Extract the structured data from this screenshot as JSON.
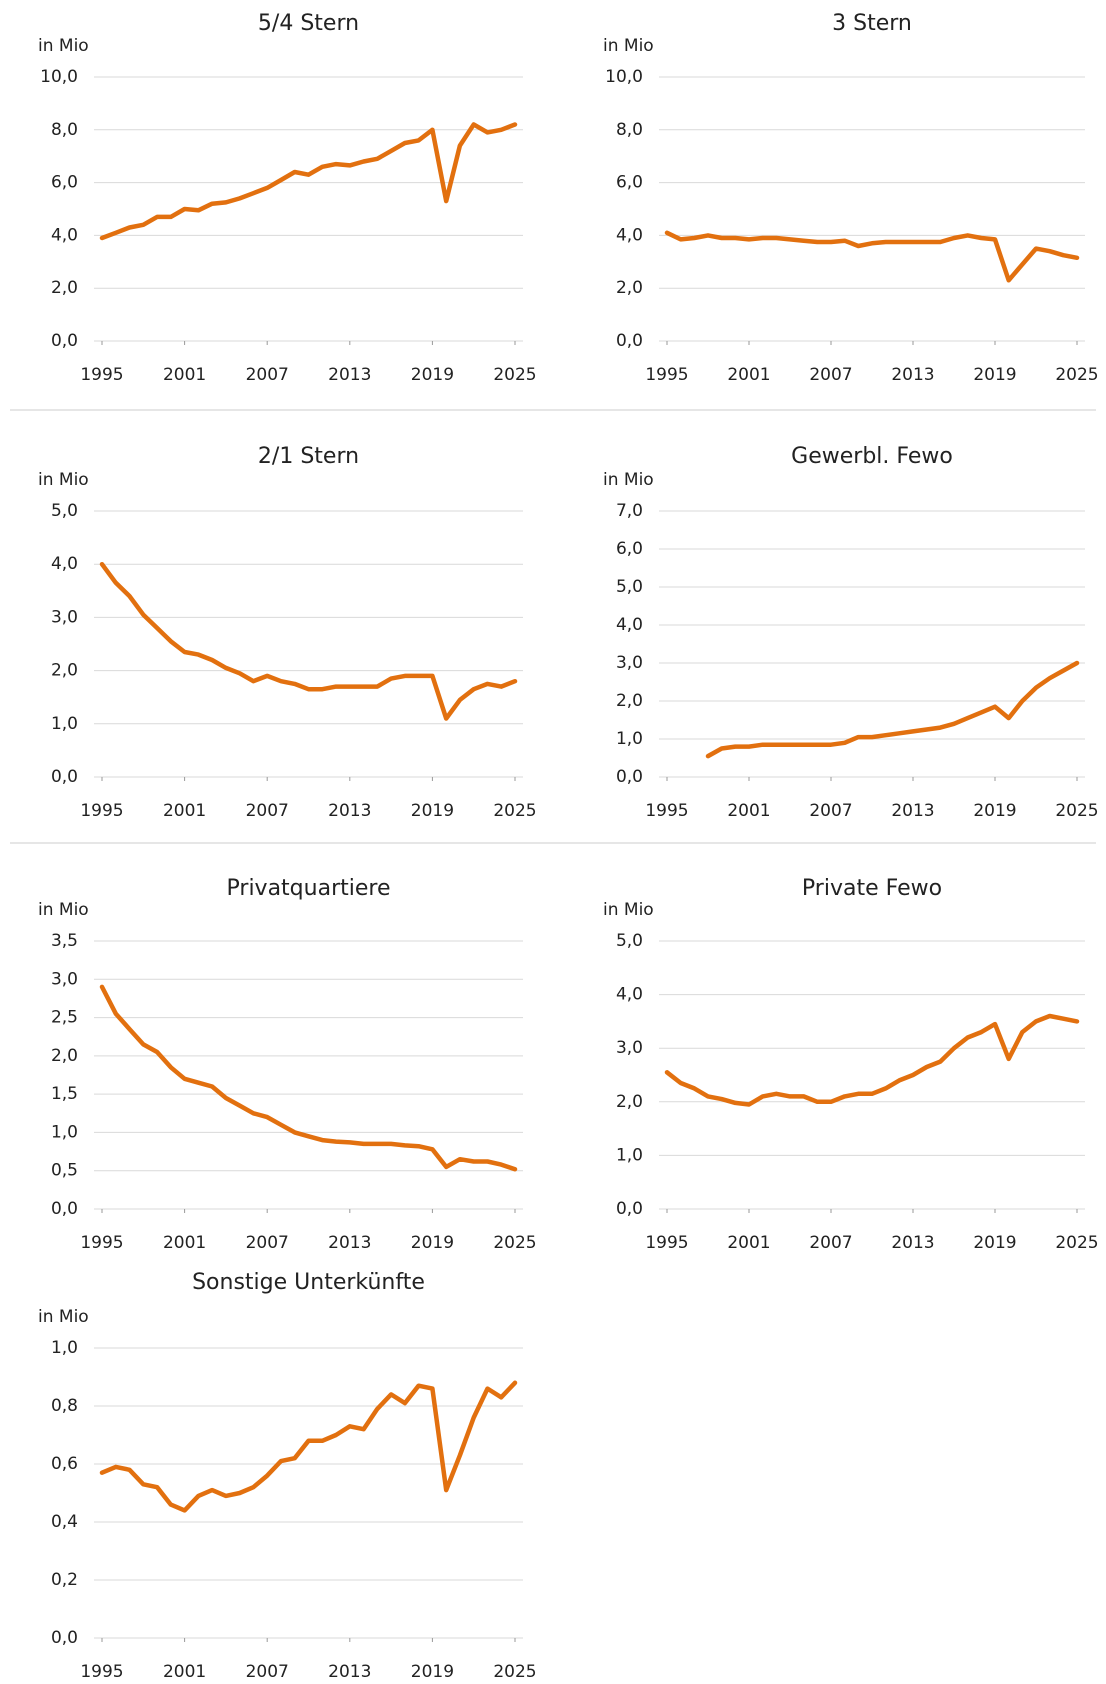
{
  "chart_data": [
    {
      "type": "line",
      "title": "5/4 Stern",
      "y_label": "in Mio",
      "color": "#e2700f",
      "x": [
        1995,
        1996,
        1997,
        1998,
        1999,
        2000,
        2001,
        2002,
        2003,
        2004,
        2005,
        2006,
        2007,
        2008,
        2009,
        2010,
        2011,
        2012,
        2013,
        2014,
        2015,
        2016,
        2017,
        2018,
        2019,
        2020,
        2021,
        2022,
        2023,
        2024,
        2025
      ],
      "values": [
        3.9,
        4.1,
        4.3,
        4.4,
        4.7,
        4.7,
        5.0,
        4.95,
        5.2,
        5.25,
        5.4,
        5.6,
        5.8,
        6.1,
        6.4,
        6.3,
        6.6,
        6.7,
        6.65,
        6.8,
        6.9,
        7.2,
        7.5,
        7.6,
        8.0,
        5.3,
        7.4,
        8.2,
        7.9,
        8.0,
        8.2
      ],
      "xlim": [
        1995,
        2025
      ],
      "xticks": [
        1995,
        2001,
        2007,
        2013,
        2019,
        2025
      ],
      "ylim": [
        0,
        10
      ],
      "yticks": [
        {
          "value": 0,
          "label": "0,0"
        },
        {
          "value": 2,
          "label": "2,0"
        },
        {
          "value": 4,
          "label": "4,0"
        },
        {
          "value": 6,
          "label": "6,0"
        },
        {
          "value": 8,
          "label": "8,0"
        },
        {
          "value": 10,
          "label": "10,0"
        }
      ],
      "grid": true
    },
    {
      "type": "line",
      "title": "3 Stern",
      "y_label": "in Mio",
      "color": "#e2700f",
      "x": [
        1995,
        1996,
        1997,
        1998,
        1999,
        2000,
        2001,
        2002,
        2003,
        2004,
        2005,
        2006,
        2007,
        2008,
        2009,
        2010,
        2011,
        2012,
        2013,
        2014,
        2015,
        2016,
        2017,
        2018,
        2019,
        2020,
        2021,
        2022,
        2023,
        2024,
        2025
      ],
      "values": [
        4.1,
        3.85,
        3.9,
        4.0,
        3.9,
        3.9,
        3.85,
        3.9,
        3.9,
        3.85,
        3.8,
        3.75,
        3.75,
        3.8,
        3.6,
        3.7,
        3.75,
        3.75,
        3.75,
        3.75,
        3.75,
        3.9,
        4.0,
        3.9,
        3.85,
        2.3,
        2.9,
        3.5,
        3.4,
        3.25,
        3.15
      ],
      "xlim": [
        1995,
        2025
      ],
      "xticks": [
        1995,
        2001,
        2007,
        2013,
        2019,
        2025
      ],
      "ylim": [
        0,
        10
      ],
      "yticks": [
        {
          "value": 0,
          "label": "0,0"
        },
        {
          "value": 2,
          "label": "2,0"
        },
        {
          "value": 4,
          "label": "4,0"
        },
        {
          "value": 6,
          "label": "6,0"
        },
        {
          "value": 8,
          "label": "8,0"
        },
        {
          "value": 10,
          "label": "10,0"
        }
      ],
      "grid": true
    },
    {
      "type": "line",
      "title": "2/1 Stern",
      "y_label": "in Mio",
      "color": "#e2700f",
      "x": [
        1995,
        1996,
        1997,
        1998,
        1999,
        2000,
        2001,
        2002,
        2003,
        2004,
        2005,
        2006,
        2007,
        2008,
        2009,
        2010,
        2011,
        2012,
        2013,
        2014,
        2015,
        2016,
        2017,
        2018,
        2019,
        2020,
        2021,
        2022,
        2023,
        2024,
        2025
      ],
      "values": [
        4.0,
        3.65,
        3.4,
        3.05,
        2.8,
        2.55,
        2.35,
        2.3,
        2.2,
        2.05,
        1.95,
        1.8,
        1.9,
        1.8,
        1.75,
        1.65,
        1.65,
        1.7,
        1.7,
        1.7,
        1.7,
        1.85,
        1.9,
        1.9,
        1.9,
        1.1,
        1.45,
        1.65,
        1.75,
        1.7,
        1.8
      ],
      "xlim": [
        1995,
        2025
      ],
      "xticks": [
        1995,
        2001,
        2007,
        2013,
        2019,
        2025
      ],
      "ylim": [
        0,
        5
      ],
      "yticks": [
        {
          "value": 0,
          "label": "0,0"
        },
        {
          "value": 1,
          "label": "1,0"
        },
        {
          "value": 2,
          "label": "2,0"
        },
        {
          "value": 3,
          "label": "3,0"
        },
        {
          "value": 4,
          "label": "4,0"
        },
        {
          "value": 5,
          "label": "5,0"
        }
      ],
      "grid": true
    },
    {
      "type": "line",
      "title": "Gewerbl.  Fewo",
      "y_label": "in Mio",
      "color": "#e2700f",
      "x": [
        1995,
        1996,
        1997,
        1998,
        1999,
        2000,
        2001,
        2002,
        2003,
        2004,
        2005,
        2006,
        2007,
        2008,
        2009,
        2010,
        2011,
        2012,
        2013,
        2014,
        2015,
        2016,
        2017,
        2018,
        2019,
        2020,
        2021,
        2022,
        2023,
        2024,
        2025
      ],
      "values": [
        null,
        null,
        null,
        0.55,
        0.75,
        0.8,
        0.8,
        0.85,
        0.85,
        0.85,
        0.85,
        0.85,
        0.85,
        0.9,
        1.05,
        1.05,
        1.1,
        1.15,
        1.2,
        1.25,
        1.3,
        1.4,
        1.55,
        1.7,
        1.85,
        1.55,
        2.0,
        2.35,
        2.6,
        2.8,
        3.0
      ],
      "xlim": [
        1995,
        2025
      ],
      "xticks": [
        1995,
        2001,
        2007,
        2013,
        2019,
        2025
      ],
      "ylim": [
        0,
        7
      ],
      "yticks": [
        {
          "value": 0,
          "label": "0,0"
        },
        {
          "value": 1,
          "label": "1,0"
        },
        {
          "value": 2,
          "label": "2,0"
        },
        {
          "value": 3,
          "label": "3,0"
        },
        {
          "value": 4,
          "label": "4,0"
        },
        {
          "value": 5,
          "label": "5,0"
        },
        {
          "value": 6,
          "label": "6,0"
        },
        {
          "value": 7,
          "label": "7,0"
        }
      ],
      "grid": true
    },
    {
      "type": "line",
      "title": "Privatquartiere",
      "y_label": "in Mio",
      "color": "#e2700f",
      "x": [
        1995,
        1996,
        1997,
        1998,
        1999,
        2000,
        2001,
        2002,
        2003,
        2004,
        2005,
        2006,
        2007,
        2008,
        2009,
        2010,
        2011,
        2012,
        2013,
        2014,
        2015,
        2016,
        2017,
        2018,
        2019,
        2020,
        2021,
        2022,
        2023,
        2024,
        2025
      ],
      "values": [
        2.9,
        2.55,
        2.35,
        2.15,
        2.05,
        1.85,
        1.7,
        1.65,
        1.6,
        1.45,
        1.35,
        1.25,
        1.2,
        1.1,
        1.0,
        0.95,
        0.9,
        0.88,
        0.87,
        0.85,
        0.85,
        0.85,
        0.83,
        0.82,
        0.78,
        0.55,
        0.65,
        0.62,
        0.62,
        0.58,
        0.52
      ],
      "xlim": [
        1995,
        2025
      ],
      "xticks": [
        1995,
        2001,
        2007,
        2013,
        2019,
        2025
      ],
      "ylim": [
        0,
        3.5
      ],
      "yticks": [
        {
          "value": 0,
          "label": "0,0"
        },
        {
          "value": 0.5,
          "label": "0,5"
        },
        {
          "value": 1,
          "label": "1,0"
        },
        {
          "value": 1.5,
          "label": "1,5"
        },
        {
          "value": 2,
          "label": "2,0"
        },
        {
          "value": 2.5,
          "label": "2,5"
        },
        {
          "value": 3,
          "label": "3,0"
        },
        {
          "value": 3.5,
          "label": "3,5"
        }
      ],
      "grid": true
    },
    {
      "type": "line",
      "title": "Private Fewo",
      "y_label": "in Mio",
      "color": "#e2700f",
      "x": [
        1995,
        1996,
        1997,
        1998,
        1999,
        2000,
        2001,
        2002,
        2003,
        2004,
        2005,
        2006,
        2007,
        2008,
        2009,
        2010,
        2011,
        2012,
        2013,
        2014,
        2015,
        2016,
        2017,
        2018,
        2019,
        2020,
        2021,
        2022,
        2023,
        2024,
        2025
      ],
      "values": [
        2.55,
        2.35,
        2.25,
        2.1,
        2.05,
        1.98,
        1.95,
        2.1,
        2.15,
        2.1,
        2.1,
        2.0,
        2.0,
        2.1,
        2.15,
        2.15,
        2.25,
        2.4,
        2.5,
        2.65,
        2.75,
        3.0,
        3.2,
        3.3,
        3.45,
        2.8,
        3.3,
        3.5,
        3.6,
        3.55,
        3.5
      ],
      "xlim": [
        1995,
        2025
      ],
      "xticks": [
        1995,
        2001,
        2007,
        2013,
        2019,
        2025
      ],
      "ylim": [
        0,
        5
      ],
      "yticks": [
        {
          "value": 0,
          "label": "0,0"
        },
        {
          "value": 1,
          "label": "1,0"
        },
        {
          "value": 2,
          "label": "2,0"
        },
        {
          "value": 3,
          "label": "3,0"
        },
        {
          "value": 4,
          "label": "4,0"
        },
        {
          "value": 5,
          "label": "5,0"
        }
      ],
      "grid": true
    },
    {
      "type": "line",
      "title": "Sonstige Unterkünfte",
      "y_label": "in Mio",
      "color": "#e2700f",
      "x": [
        1995,
        1996,
        1997,
        1998,
        1999,
        2000,
        2001,
        2002,
        2003,
        2004,
        2005,
        2006,
        2007,
        2008,
        2009,
        2010,
        2011,
        2012,
        2013,
        2014,
        2015,
        2016,
        2017,
        2018,
        2019,
        2020,
        2021,
        2022,
        2023,
        2024,
        2025
      ],
      "values": [
        0.57,
        0.59,
        0.58,
        0.53,
        0.52,
        0.46,
        0.44,
        0.49,
        0.51,
        0.49,
        0.5,
        0.52,
        0.56,
        0.61,
        0.62,
        0.68,
        0.68,
        0.7,
        0.73,
        0.72,
        0.79,
        0.84,
        0.81,
        0.87,
        0.86,
        0.51,
        0.63,
        0.76,
        0.86,
        0.83,
        0.88
      ],
      "xlim": [
        1995,
        2025
      ],
      "xticks": [
        1995,
        2001,
        2007,
        2013,
        2019,
        2025
      ],
      "ylim": [
        0,
        1
      ],
      "yticks": [
        {
          "value": 0,
          "label": "0,0"
        },
        {
          "value": 0.2,
          "label": "0,2"
        },
        {
          "value": 0.4,
          "label": "0,4"
        },
        {
          "value": 0.6,
          "label": "0,6"
        },
        {
          "value": 0.8,
          "label": "0,8"
        },
        {
          "value": 1,
          "label": "1,0"
        }
      ],
      "grid": true
    }
  ]
}
